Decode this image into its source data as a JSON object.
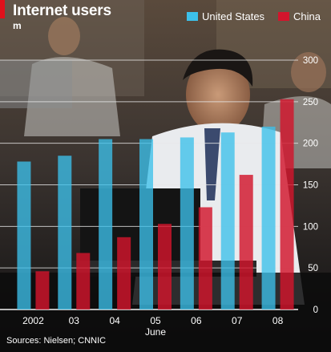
{
  "header": {
    "title": "Internet users",
    "unit": "m"
  },
  "legend": {
    "us_label": "United States",
    "china_label": "China"
  },
  "footer": {
    "source": "Sources: Nielsen; CNNIC"
  },
  "colors": {
    "us": "#3cc0ea",
    "china": "#d2152c",
    "accent": "#e0101b"
  },
  "chart_data": {
    "type": "bar",
    "categories": [
      "2002",
      "03",
      "04",
      "05",
      "06",
      "07",
      "08"
    ],
    "x_sublabel": {
      "category": "05",
      "text": "June"
    },
    "series": [
      {
        "name": "United States",
        "values": [
          178,
          185,
          205,
          205,
          207,
          213,
          220
        ]
      },
      {
        "name": "China",
        "values": [
          46,
          68,
          87,
          103,
          123,
          162,
          253
        ]
      }
    ],
    "ylim": [
      0,
      300
    ],
    "yticks": [
      0,
      50,
      100,
      150,
      200,
      250,
      300
    ],
    "y_axis_side": "right",
    "grid": true,
    "legend_position": "top-right"
  }
}
